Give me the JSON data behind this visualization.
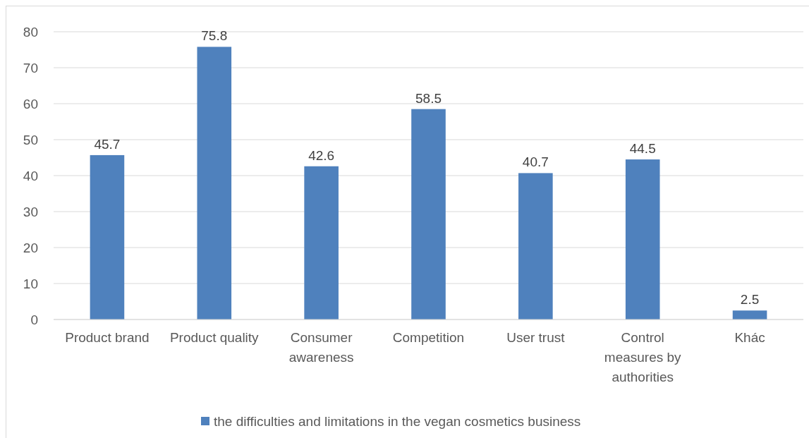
{
  "chart_data": {
    "type": "bar",
    "categories": [
      "Product brand",
      "Product quality",
      "Consumer awareness",
      "Competition",
      "User trust",
      "Control measures by authorities",
      "Khác"
    ],
    "series": [
      {
        "name": "the difficulties and limitations in the vegan cosmetics business",
        "color": "#4f81bd",
        "values": [
          45.7,
          75.8,
          42.6,
          58.5,
          40.7,
          44.5,
          2.5
        ]
      }
    ],
    "ylim": [
      0,
      80
    ],
    "yticks": [
      0,
      10,
      20,
      30,
      40,
      50,
      60,
      70,
      80
    ],
    "grid": "y",
    "data_labels": true,
    "legend": "bottom"
  }
}
